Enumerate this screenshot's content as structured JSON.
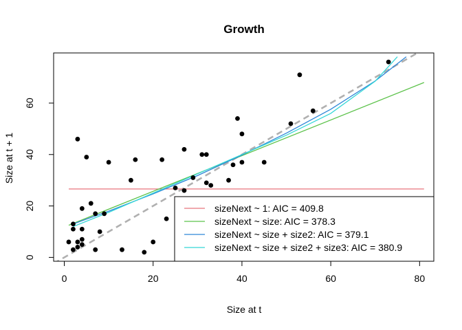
{
  "chart_data": {
    "type": "scatter",
    "title": "Growth",
    "xlabel": "Size at t",
    "ylabel": "Size at t + 1",
    "xlim": [
      -2.4,
      83.2
    ],
    "ylim": [
      -1.5,
      79.5
    ],
    "x_ticks": [
      0,
      20,
      40,
      60,
      80
    ],
    "y_ticks": [
      0,
      20,
      40,
      60
    ],
    "grid": false,
    "legend_position": "bottom-right",
    "points": [
      [
        1,
        6
      ],
      [
        2,
        3
      ],
      [
        2,
        11
      ],
      [
        2,
        13
      ],
      [
        3,
        4
      ],
      [
        3,
        6
      ],
      [
        3,
        46
      ],
      [
        4,
        5
      ],
      [
        4,
        7
      ],
      [
        4,
        11
      ],
      [
        4,
        19
      ],
      [
        5,
        39
      ],
      [
        6,
        21
      ],
      [
        7,
        3
      ],
      [
        7,
        17
      ],
      [
        8,
        10
      ],
      [
        9,
        17
      ],
      [
        10,
        37
      ],
      [
        13,
        3
      ],
      [
        15,
        30
      ],
      [
        16,
        38
      ],
      [
        18,
        2
      ],
      [
        20,
        6
      ],
      [
        22,
        38
      ],
      [
        23,
        15
      ],
      [
        25,
        27
      ],
      [
        27,
        26
      ],
      [
        27,
        42
      ],
      [
        29,
        31
      ],
      [
        31,
        40
      ],
      [
        32,
        29
      ],
      [
        32,
        40
      ],
      [
        33,
        28
      ],
      [
        37,
        30
      ],
      [
        38,
        36
      ],
      [
        39,
        54
      ],
      [
        40,
        37
      ],
      [
        40,
        48
      ],
      [
        45,
        37
      ],
      [
        51,
        52
      ],
      [
        53,
        71
      ],
      [
        56,
        57
      ],
      [
        73,
        76
      ]
    ],
    "identity_line": {
      "slope": 1,
      "intercept": 0,
      "color": "#b0b0b0",
      "dashed": true
    },
    "series": [
      {
        "name": "sizeNext ~ 1: AIC = 409.8",
        "color": "#e8747c",
        "x": [
          1,
          81
        ],
        "y": [
          26.6,
          26.6
        ]
      },
      {
        "name": "sizeNext ~ size: AIC = 378.3",
        "color": "#5cc24a",
        "x": [
          1,
          81
        ],
        "y": [
          12.5,
          68.0
        ]
      },
      {
        "name": "sizeNext ~ size + size2: AIC = 379.1",
        "color": "#2d86d8",
        "x": [
          2,
          10,
          20,
          30,
          40,
          50,
          60,
          70,
          77
        ],
        "y": [
          13.0,
          18.0,
          24.7,
          31.8,
          39.8,
          48.3,
          57.6,
          68.6,
          78.0
        ]
      },
      {
        "name": "sizeNext ~ size + size2 + size3: AIC = 380.9",
        "color": "#35d7d7",
        "x": [
          2,
          10,
          20,
          30,
          40,
          50,
          60,
          70,
          75
        ],
        "y": [
          12.0,
          17.5,
          25.0,
          32.5,
          40.0,
          47.5,
          56.0,
          68.5,
          78.0
        ]
      }
    ]
  }
}
